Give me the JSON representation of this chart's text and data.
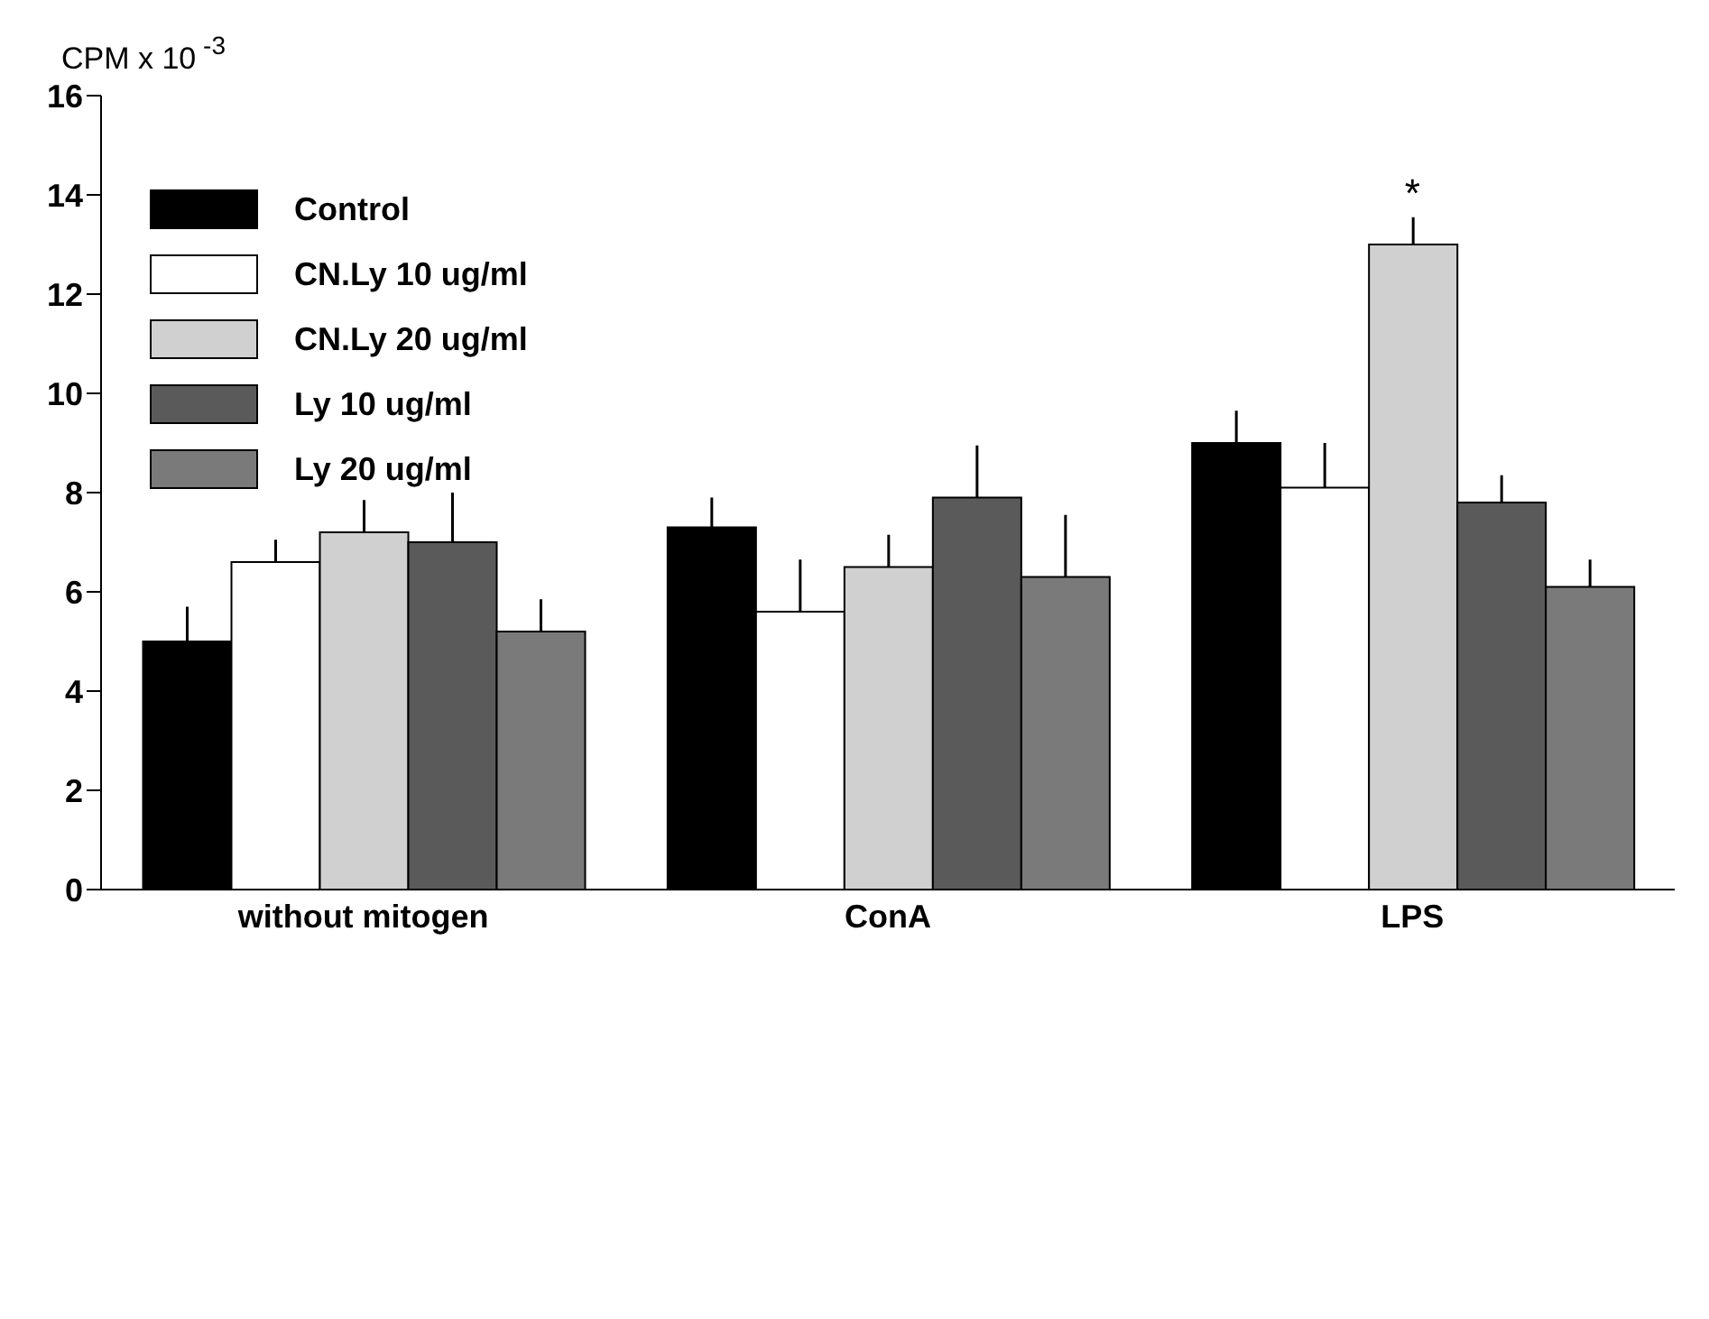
{
  "chart_data": {
    "type": "bar",
    "ylabel": "CPM x 10$^{-3}$",
    "categories": [
      "without mitogen",
      "ConA",
      "LPS"
    ],
    "ylim": [
      0,
      16
    ],
    "yticks": [
      0,
      2,
      4,
      6,
      8,
      10,
      12,
      14,
      16
    ],
    "grid": false,
    "legend": "top left",
    "series": [
      {
        "name": "Control",
        "color": "#000000",
        "values": [
          5.0,
          7.3,
          9.0
        ],
        "errors": [
          [
            5.0,
            5.7
          ],
          [
            7.3,
            7.9
          ],
          [
            9.0,
            9.65
          ]
        ]
      },
      {
        "name": "CN.Ly 10 ug/ml",
        "color": "#ffffff",
        "values": [
          6.6,
          5.6,
          8.1
        ],
        "errors": [
          [
            6.6,
            7.05
          ],
          [
            5.6,
            6.65
          ],
          [
            8.1,
            9.0
          ]
        ]
      },
      {
        "name": "CN.Ly 20 ug/ml",
        "color": "#d0d0d0",
        "values": [
          7.2,
          6.5,
          13.0
        ],
        "errors": [
          [
            7.2,
            7.85
          ],
          [
            6.5,
            7.15
          ],
          [
            13.0,
            13.55
          ]
        ]
      },
      {
        "name": "Ly 10 ug/ml",
        "color": "#5a5a5a",
        "values": [
          7.0,
          7.9,
          7.8
        ],
        "errors": [
          [
            7.0,
            8.0
          ],
          [
            7.9,
            8.95
          ],
          [
            7.8,
            8.35
          ]
        ]
      },
      {
        "name": "Ly 20 ug/ml",
        "color": "#7a7a7a",
        "values": [
          5.2,
          6.3,
          6.1
        ],
        "errors": [
          [
            5.2,
            5.85
          ],
          [
            6.3,
            7.55
          ],
          [
            6.1,
            6.65
          ]
        ]
      }
    ],
    "annotations": [
      "*"
    ]
  }
}
